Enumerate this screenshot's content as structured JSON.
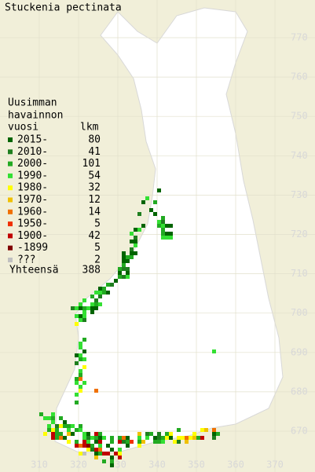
{
  "title": "Stuckenia pectinata",
  "legend": {
    "header": [
      "Uusimman",
      "havainnon",
      "vuosi"
    ],
    "count_header": "lkm",
    "items": [
      {
        "label": "2015-",
        "count": 80,
        "color": "#006400"
      },
      {
        "label": "2010-",
        "count": 41,
        "color": "#1f7f1f"
      },
      {
        "label": "2000-",
        "count": 101,
        "color": "#22aa22"
      },
      {
        "label": "1990-",
        "count": 54,
        "color": "#33e033"
      },
      {
        "label": "1980-",
        "count": 32,
        "color": "#ffff00"
      },
      {
        "label": "1970-",
        "count": 12,
        "color": "#f0c000"
      },
      {
        "label": "1960-",
        "count": 14,
        "color": "#f07000"
      },
      {
        "label": "1950-",
        "count": 5,
        "color": "#f03000"
      },
      {
        "label": "1900-",
        "count": 42,
        "color": "#c00000"
      },
      {
        "label": "-1899",
        "count": 5,
        "color": "#800000"
      },
      {
        "label": "???",
        "count": 2,
        "color": "#c0c0c0"
      }
    ],
    "total_label": "Yhteensä",
    "total": 388
  },
  "grid": {
    "north": [
      770,
      760,
      750,
      740,
      730,
      720,
      710,
      700,
      690,
      680,
      670
    ],
    "east": [
      310,
      320,
      330,
      340,
      350,
      360,
      370
    ]
  }
}
